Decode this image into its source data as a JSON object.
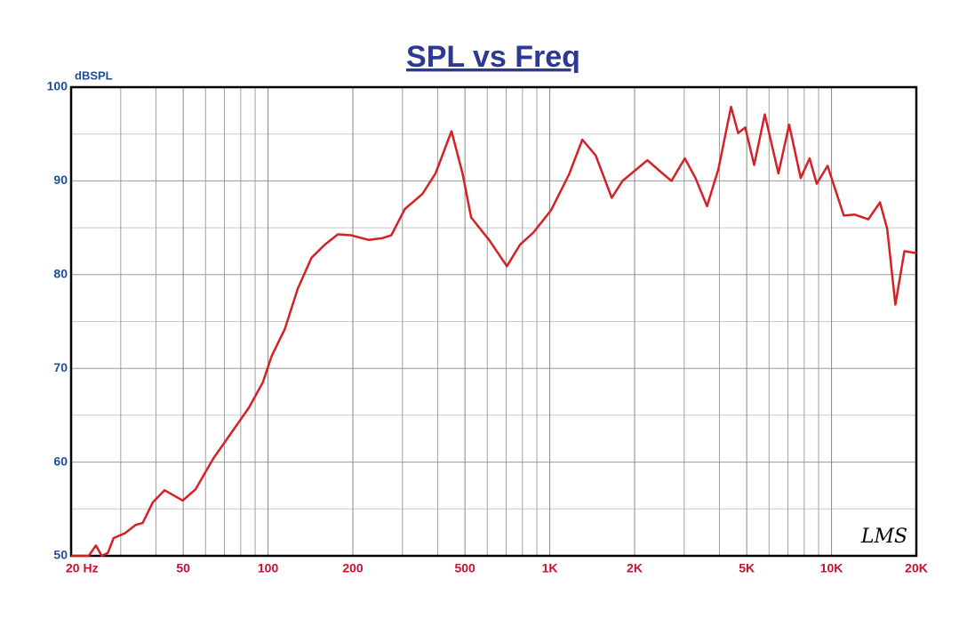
{
  "chart_data": {
    "type": "line",
    "title": "SPL vs Freq",
    "y_axis_label": "dBSPL",
    "watermark": "LMS",
    "x_log_scale": true,
    "grid": true,
    "xlim": [
      20,
      20000
    ],
    "ylim": [
      50,
      100
    ],
    "xticks": [
      {
        "value": 20,
        "label": "20 Hz"
      },
      50,
      100,
      200,
      500,
      {
        "value": 1000,
        "label": "1K"
      },
      {
        "value": 2000,
        "label": "2K"
      },
      {
        "value": 5000,
        "label": "5K"
      },
      {
        "value": 10000,
        "label": "10K"
      },
      {
        "value": 20000,
        "label": "20K"
      }
    ],
    "x_minor_ticks": [
      30,
      40,
      60,
      70,
      80,
      90,
      300,
      400,
      600,
      700,
      800,
      900,
      3000,
      4000,
      6000,
      7000,
      8000,
      9000
    ],
    "yticks": [
      50,
      60,
      70,
      80,
      90,
      100
    ],
    "y_minor_ticks": [
      55,
      65,
      75,
      85,
      95
    ],
    "series": [
      {
        "color": "#d42027",
        "x": [
          20,
          23.1,
          24.5,
          25.7,
          27,
          28.3,
          31,
          33.9,
          35.9,
          39,
          42.9,
          49.8,
          55.3,
          64,
          74,
          85.5,
          95.8,
          103,
          114.7,
          127.5,
          142.7,
          159,
          177,
          197,
          228,
          255,
          274,
          306,
          353,
          393,
          448,
          490,
          526,
          609,
          704,
          784,
          875,
          1012,
          1171,
          1305,
          1456,
          1660,
          1812,
          2220,
          2512,
          2703,
          3014,
          3290,
          3614,
          3969,
          4398,
          4661,
          4940,
          5311,
          5798,
          6477,
          7075,
          7772,
          8358,
          8862,
          9681,
          11060,
          12090,
          13500,
          14860,
          15760,
          16850,
          18150,
          20000
        ],
        "values": [
          50,
          50,
          51.1,
          50,
          50.3,
          51.9,
          52.4,
          53.3,
          53.5,
          55.7,
          57,
          55.9,
          57.1,
          60.4,
          63.1,
          65.8,
          68.5,
          71.3,
          74.2,
          78.5,
          81.8,
          83.2,
          84.3,
          84.2,
          83.7,
          83.9,
          84.2,
          87,
          88.6,
          90.8,
          95.3,
          90.8,
          86.1,
          83.7,
          80.9,
          83.2,
          84.5,
          86.9,
          90.7,
          94.4,
          92.7,
          88.2,
          90,
          92.2,
          90.8,
          90,
          92.4,
          90.3,
          87.3,
          91.3,
          97.9,
          95.1,
          95.7,
          91.7,
          97.1,
          90.8,
          96,
          90.3,
          92.4,
          89.7,
          91.6,
          86.3,
          86.4,
          85.9,
          87.7,
          84.9,
          76.8,
          82.5,
          82.3
        ]
      }
    ]
  }
}
